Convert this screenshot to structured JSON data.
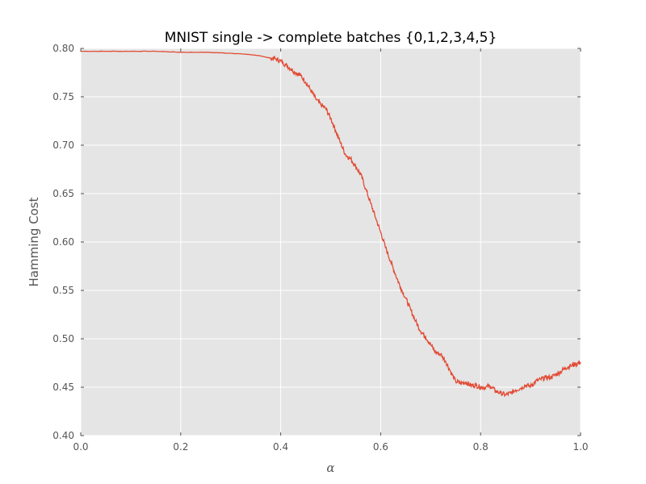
{
  "chart_data": {
    "type": "line",
    "title": "MNIST single -> complete batches {0,1,2,3,4,5}",
    "xlabel": "α",
    "ylabel": "Hamming Cost",
    "xlim": [
      0.0,
      1.0
    ],
    "ylim": [
      0.4,
      0.8
    ],
    "x_ticks": [
      "0.0",
      "0.2",
      "0.4",
      "0.6",
      "0.8",
      "1.0"
    ],
    "y_ticks": [
      "0.40",
      "0.45",
      "0.50",
      "0.55",
      "0.60",
      "0.65",
      "0.70",
      "0.75",
      "0.80"
    ],
    "grid": true,
    "colors": {
      "background": "#e5e5e5",
      "grid": "#ffffff",
      "line": "#e24a33",
      "tick": "#555555"
    },
    "series": [
      {
        "x": [
          0.0,
          0.05,
          0.1,
          0.15,
          0.2,
          0.25,
          0.3,
          0.33,
          0.35,
          0.37,
          0.38,
          0.39,
          0.4,
          0.41,
          0.42,
          0.43,
          0.44,
          0.45,
          0.46,
          0.47,
          0.48,
          0.49,
          0.5,
          0.51,
          0.52,
          0.53,
          0.54,
          0.55,
          0.56,
          0.57,
          0.58,
          0.59,
          0.6,
          0.61,
          0.62,
          0.63,
          0.64,
          0.65,
          0.66,
          0.67,
          0.68,
          0.69,
          0.7,
          0.71,
          0.72,
          0.73,
          0.74,
          0.75,
          0.76,
          0.77,
          0.78,
          0.79,
          0.8,
          0.81,
          0.82,
          0.83,
          0.84,
          0.85,
          0.86,
          0.87,
          0.88,
          0.89,
          0.9,
          0.91,
          0.92,
          0.93,
          0.94,
          0.95,
          0.96,
          0.97,
          0.98,
          0.99,
          1.0
        ],
        "values": [
          0.797,
          0.797,
          0.797,
          0.797,
          0.796,
          0.796,
          0.795,
          0.794,
          0.793,
          0.791,
          0.79,
          0.789,
          0.787,
          0.783,
          0.779,
          0.775,
          0.772,
          0.765,
          0.757,
          0.748,
          0.742,
          0.738,
          0.728,
          0.715,
          0.702,
          0.69,
          0.686,
          0.678,
          0.67,
          0.655,
          0.64,
          0.625,
          0.61,
          0.594,
          0.58,
          0.566,
          0.553,
          0.542,
          0.53,
          0.518,
          0.508,
          0.502,
          0.494,
          0.486,
          0.484,
          0.477,
          0.466,
          0.456,
          0.454,
          0.455,
          0.452,
          0.452,
          0.45,
          0.45,
          0.451,
          0.446,
          0.444,
          0.442,
          0.444,
          0.447,
          0.449,
          0.452,
          0.451,
          0.456,
          0.458,
          0.46,
          0.46,
          0.463,
          0.466,
          0.47,
          0.472,
          0.474,
          0.476
        ]
      }
    ]
  }
}
